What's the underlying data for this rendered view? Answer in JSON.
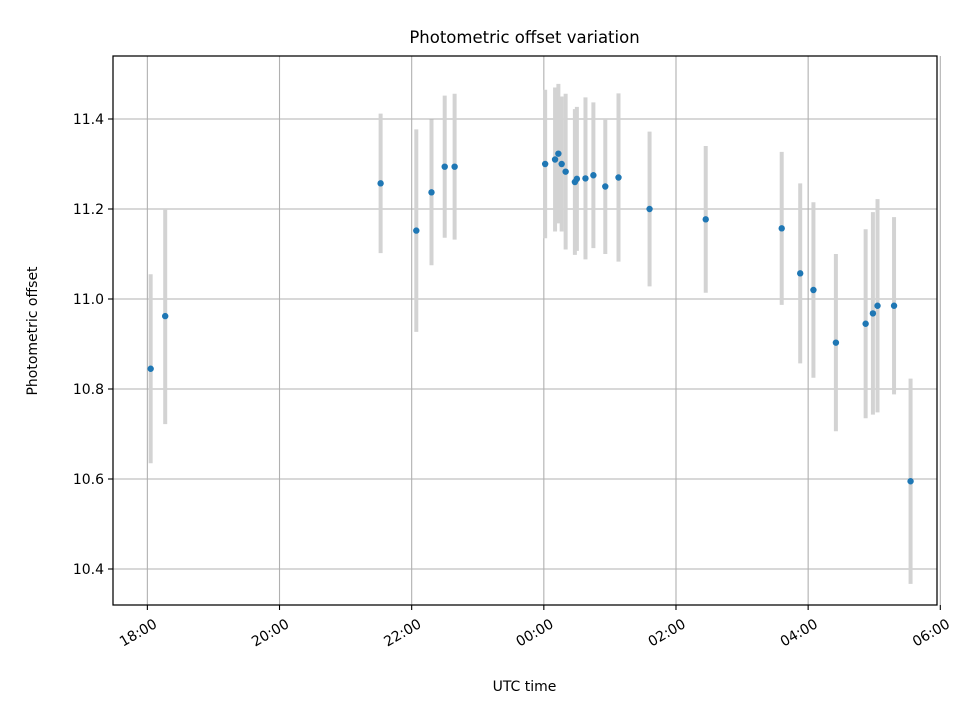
{
  "chart_data": {
    "type": "scatter",
    "title": "Photometric offset variation",
    "xlabel": "UTC time",
    "ylabel": "Photometric offset",
    "x_unit": "hours since 18:00 UTC",
    "xlim": [
      -0.52,
      11.95
    ],
    "ylim": [
      10.32,
      11.54
    ],
    "grid": true,
    "x_ticks": [
      {
        "value": 0,
        "label": "18:00"
      },
      {
        "value": 2,
        "label": "20:00"
      },
      {
        "value": 4,
        "label": "22:00"
      },
      {
        "value": 6,
        "label": "00:00"
      },
      {
        "value": 8,
        "label": "02:00"
      },
      {
        "value": 10,
        "label": "04:00"
      },
      {
        "value": 12,
        "label": "06:00"
      }
    ],
    "y_ticks": [
      {
        "value": 10.4,
        "label": "10.4"
      },
      {
        "value": 10.6,
        "label": "10.6"
      },
      {
        "value": 10.8,
        "label": "10.8"
      },
      {
        "value": 11.0,
        "label": "11.0"
      },
      {
        "value": 11.2,
        "label": "11.2"
      },
      {
        "value": 11.4,
        "label": "11.4"
      }
    ],
    "colors": {
      "point": "#1f77b4",
      "errorbar": "#d3d3d3",
      "grid": "#b0b0b0"
    },
    "series": [
      {
        "points": [
          {
            "x": 0.05,
            "y": 10.845,
            "err": 0.21
          },
          {
            "x": 0.27,
            "y": 10.962,
            "err": 0.24
          },
          {
            "x": 3.53,
            "y": 11.257,
            "err": 0.155
          },
          {
            "x": 4.07,
            "y": 11.152,
            "err": 0.225
          },
          {
            "x": 4.3,
            "y": 11.237,
            "err": 0.162
          },
          {
            "x": 4.5,
            "y": 11.294,
            "err": 0.158
          },
          {
            "x": 4.65,
            "y": 11.294,
            "err": 0.162
          },
          {
            "x": 6.02,
            "y": 11.3,
            "err": 0.165
          },
          {
            "x": 6.17,
            "y": 11.31,
            "err": 0.16
          },
          {
            "x": 6.22,
            "y": 11.323,
            "err": 0.155
          },
          {
            "x": 6.27,
            "y": 11.3,
            "err": 0.15
          },
          {
            "x": 6.33,
            "y": 11.283,
            "err": 0.173
          },
          {
            "x": 6.47,
            "y": 11.26,
            "err": 0.162
          },
          {
            "x": 6.5,
            "y": 11.267,
            "err": 0.16
          },
          {
            "x": 6.63,
            "y": 11.268,
            "err": 0.18
          },
          {
            "x": 6.75,
            "y": 11.275,
            "err": 0.162
          },
          {
            "x": 6.93,
            "y": 11.25,
            "err": 0.15
          },
          {
            "x": 7.13,
            "y": 11.27,
            "err": 0.187
          },
          {
            "x": 7.6,
            "y": 11.2,
            "err": 0.172
          },
          {
            "x": 8.45,
            "y": 11.177,
            "err": 0.163
          },
          {
            "x": 9.6,
            "y": 11.157,
            "err": 0.17
          },
          {
            "x": 9.88,
            "y": 11.057,
            "err": 0.2
          },
          {
            "x": 10.08,
            "y": 11.02,
            "err": 0.195
          },
          {
            "x": 10.42,
            "y": 10.903,
            "err": 0.197
          },
          {
            "x": 10.87,
            "y": 10.945,
            "err": 0.21
          },
          {
            "x": 10.98,
            "y": 10.968,
            "err": 0.225
          },
          {
            "x": 11.05,
            "y": 10.985,
            "err": 0.237
          },
          {
            "x": 11.3,
            "y": 10.985,
            "err": 0.197
          },
          {
            "x": 11.55,
            "y": 10.595,
            "err": 0.228
          }
        ]
      }
    ]
  }
}
